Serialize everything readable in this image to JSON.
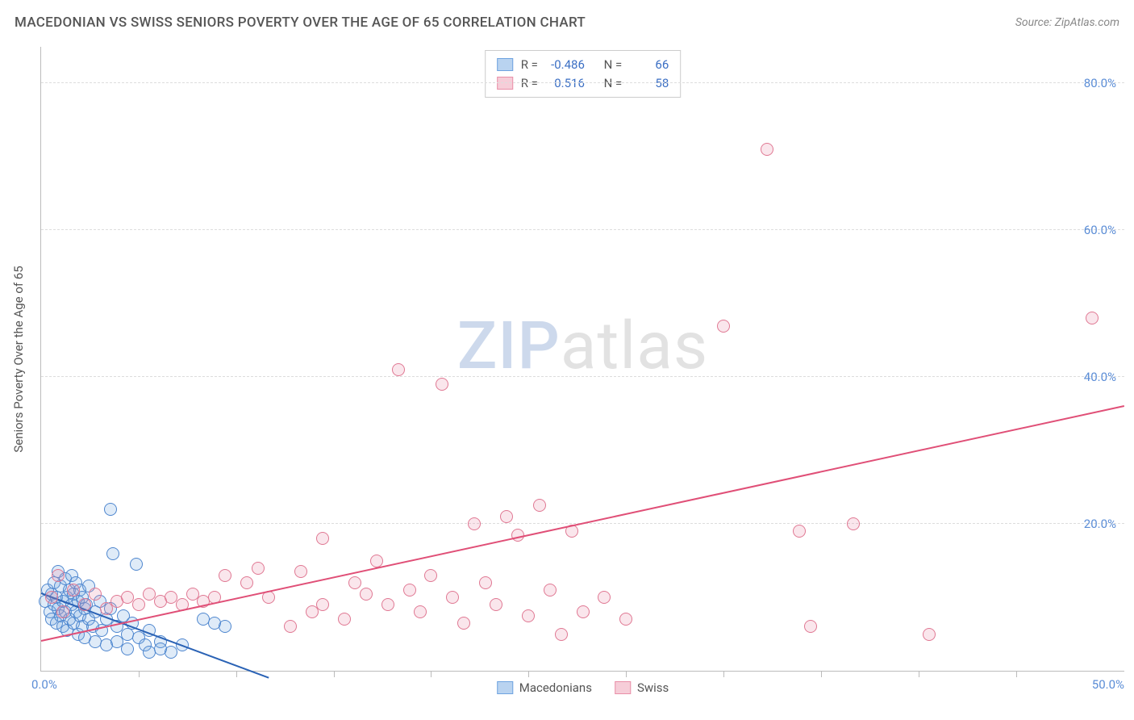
{
  "title": "MACEDONIAN VS SWISS SENIORS POVERTY OVER THE AGE OF 65 CORRELATION CHART",
  "source_label": "Source: ZipAtlas.com",
  "y_axis_title": "Seniors Poverty Over the Age of 65",
  "watermark": {
    "part1": "ZIP",
    "part2": "atlas"
  },
  "chart": {
    "type": "scatter",
    "xlim": [
      0,
      50
    ],
    "ylim": [
      0,
      85
    ],
    "x_ticks_major": [
      0,
      50
    ],
    "x_ticks_minor": [
      4.5,
      9,
      13.5,
      18,
      22.5,
      27,
      31.5,
      36,
      40.5,
      45
    ],
    "y_ticks": [
      20,
      40,
      60,
      80
    ],
    "x_tick_labels": [
      "0.0%",
      "50.0%"
    ],
    "y_tick_labels": [
      "20.0%",
      "40.0%",
      "60.0%",
      "80.0%"
    ],
    "grid_color": "#dddddd",
    "axis_color": "#bbbbbb",
    "background_color": "#ffffff",
    "tick_label_color": "#5b8dd6",
    "marker_radius": 8,
    "marker_stroke_width": 1.5,
    "marker_fill_opacity": 0.22,
    "line_width": 2
  },
  "series": [
    {
      "name": "Macedonians",
      "swatch_fill": "#b9d3f0",
      "swatch_stroke": "#6fa3e0",
      "marker_fill": "#6fa3e0",
      "marker_stroke": "#4f87cf",
      "line_color": "#2a62b5",
      "R_label": "R =",
      "R": "-0.486",
      "N_label": "N =",
      "N": "66",
      "trend": {
        "x1": 0,
        "y1": 10.5,
        "x2": 10.5,
        "y2": -1
      },
      "points": [
        [
          0.2,
          9.5
        ],
        [
          0.3,
          11
        ],
        [
          0.4,
          8
        ],
        [
          0.5,
          10.5
        ],
        [
          0.5,
          7
        ],
        [
          0.6,
          12
        ],
        [
          0.6,
          9
        ],
        [
          0.7,
          6.5
        ],
        [
          0.7,
          10
        ],
        [
          0.8,
          13.5
        ],
        [
          0.8,
          8.5
        ],
        [
          0.9,
          11.5
        ],
        [
          0.9,
          7.5
        ],
        [
          1.0,
          9.5
        ],
        [
          1.0,
          6
        ],
        [
          1.1,
          12.5
        ],
        [
          1.1,
          8
        ],
        [
          1.2,
          10
        ],
        [
          1.2,
          5.5
        ],
        [
          1.3,
          11
        ],
        [
          1.3,
          7
        ],
        [
          1.4,
          9
        ],
        [
          1.4,
          13
        ],
        [
          1.5,
          6.5
        ],
        [
          1.5,
          10.5
        ],
        [
          1.6,
          8
        ],
        [
          1.6,
          12
        ],
        [
          1.7,
          5
        ],
        [
          1.7,
          9.5
        ],
        [
          1.8,
          7.5
        ],
        [
          1.8,
          11
        ],
        [
          1.9,
          6
        ],
        [
          1.9,
          10
        ],
        [
          2.0,
          8.5
        ],
        [
          2.0,
          4.5
        ],
        [
          2.1,
          9
        ],
        [
          2.2,
          7
        ],
        [
          2.2,
          11.5
        ],
        [
          2.4,
          6
        ],
        [
          2.5,
          8
        ],
        [
          2.5,
          4
        ],
        [
          2.7,
          9.5
        ],
        [
          2.8,
          5.5
        ],
        [
          3.0,
          7
        ],
        [
          3.0,
          3.5
        ],
        [
          3.2,
          8.5
        ],
        [
          3.3,
          16
        ],
        [
          3.5,
          6
        ],
        [
          3.5,
          4
        ],
        [
          3.8,
          7.5
        ],
        [
          4.0,
          5
        ],
        [
          4.0,
          3
        ],
        [
          4.2,
          6.5
        ],
        [
          4.4,
          14.5
        ],
        [
          4.5,
          4.5
        ],
        [
          4.8,
          3.5
        ],
        [
          5.0,
          5.5
        ],
        [
          5.0,
          2.5
        ],
        [
          5.5,
          4
        ],
        [
          5.5,
          3
        ],
        [
          6.0,
          2.5
        ],
        [
          6.5,
          3.5
        ],
        [
          3.2,
          22
        ],
        [
          7.5,
          7
        ],
        [
          8.0,
          6.5
        ],
        [
          8.5,
          6
        ]
      ]
    },
    {
      "name": "Swiss",
      "swatch_fill": "#f6cdd8",
      "swatch_stroke": "#e98fa8",
      "marker_fill": "#e98fa8",
      "marker_stroke": "#e07893",
      "line_color": "#e04f77",
      "R_label": "R =",
      "R": "0.516",
      "N_label": "N =",
      "N": "58",
      "trend": {
        "x1": 0,
        "y1": 4,
        "x2": 50,
        "y2": 36
      },
      "points": [
        [
          0.5,
          10
        ],
        [
          0.8,
          13
        ],
        [
          1.0,
          8
        ],
        [
          1.5,
          11
        ],
        [
          2.0,
          9
        ],
        [
          2.5,
          10.5
        ],
        [
          3.0,
          8.5
        ],
        [
          3.5,
          9.5
        ],
        [
          4.0,
          10
        ],
        [
          4.5,
          9
        ],
        [
          5.0,
          10.5
        ],
        [
          5.5,
          9.5
        ],
        [
          6.0,
          10
        ],
        [
          6.5,
          9
        ],
        [
          7.0,
          10.5
        ],
        [
          7.5,
          9.5
        ],
        [
          8.0,
          10
        ],
        [
          8.5,
          13
        ],
        [
          9.5,
          12
        ],
        [
          10.0,
          14
        ],
        [
          10.5,
          10
        ],
        [
          11.5,
          6
        ],
        [
          12.0,
          13.5
        ],
        [
          13.0,
          9
        ],
        [
          13.0,
          18
        ],
        [
          14.0,
          7
        ],
        [
          14.5,
          12
        ],
        [
          15.0,
          10.5
        ],
        [
          15.5,
          15
        ],
        [
          16.0,
          9
        ],
        [
          16.5,
          41
        ],
        [
          17.0,
          11
        ],
        [
          17.5,
          8
        ],
        [
          18.0,
          13
        ],
        [
          18.5,
          39
        ],
        [
          19.0,
          10
        ],
        [
          20.0,
          20
        ],
        [
          20.5,
          12
        ],
        [
          21.0,
          9
        ],
        [
          21.5,
          21
        ],
        [
          22.5,
          7.5
        ],
        [
          23.0,
          22.5
        ],
        [
          23.5,
          11
        ],
        [
          24.0,
          5
        ],
        [
          24.5,
          19
        ],
        [
          25.0,
          8
        ],
        [
          26.0,
          10
        ],
        [
          27.0,
          7
        ],
        [
          31.5,
          47
        ],
        [
          33.5,
          71
        ],
        [
          35.0,
          19
        ],
        [
          35.5,
          6
        ],
        [
          37.5,
          20
        ],
        [
          41.0,
          5
        ],
        [
          48.5,
          48
        ],
        [
          19.5,
          6.5
        ],
        [
          12.5,
          8
        ],
        [
          22.0,
          18.5
        ]
      ]
    }
  ]
}
